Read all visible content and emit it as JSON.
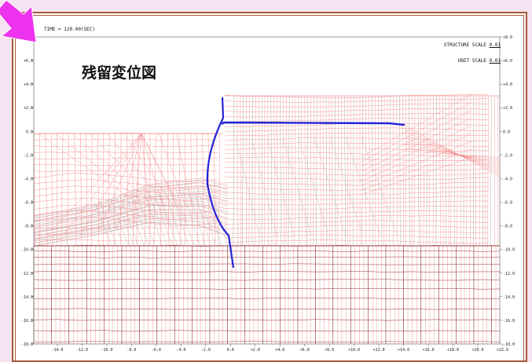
{
  "header": {
    "time_label": "TIME = 120.00(SEC)",
    "structure_scale_label": "STRUCTURE SCALE",
    "structure_scale_value": "0.01",
    "unit_scale_label": "UNIT SCALE",
    "unit_scale_value": "0.01"
  },
  "title": "残留変位図",
  "axes": {
    "x_ticks": [
      "-14.0",
      "-12.0",
      "-10.0",
      "-8.0",
      "-6.0",
      "-4.0",
      "-2.0",
      "0.0",
      "+2.0",
      "+4.0",
      "+6.0",
      "+8.0",
      "+10.0",
      "+12.0",
      "+14.0",
      "+16.0",
      "+18.0",
      "+20.0",
      "+22.0"
    ],
    "y_ticks_left": [
      "+8.0",
      "+6.0",
      "+4.0",
      "+2.0",
      "0.0",
      "-2.0",
      "-4.0",
      "-6.0",
      "-8.0",
      "-10.0",
      "-12.0",
      "-14.0",
      "-16.0",
      "-18.0"
    ],
    "y_ticks_right": [
      "+8.0",
      "+6.0",
      "+4.0",
      "+2.0",
      "0.0",
      "-2.0",
      "-4.0",
      "-6.0",
      "-8.0",
      "-10.0",
      "-12.0",
      "-14.0",
      "-16.0",
      "-18.0"
    ]
  },
  "colors": {
    "mesh_light": "#f06c6c",
    "mesh_dark": "#8c1a1a",
    "mesh_gray": "#9a9a9a",
    "structure": "#2323d8",
    "frame": "#a65a38",
    "arrow": "#ee33ee",
    "page_bg": "#f6e3f1"
  },
  "decorations": {
    "arrow_icon": "pointer-arrow"
  }
}
